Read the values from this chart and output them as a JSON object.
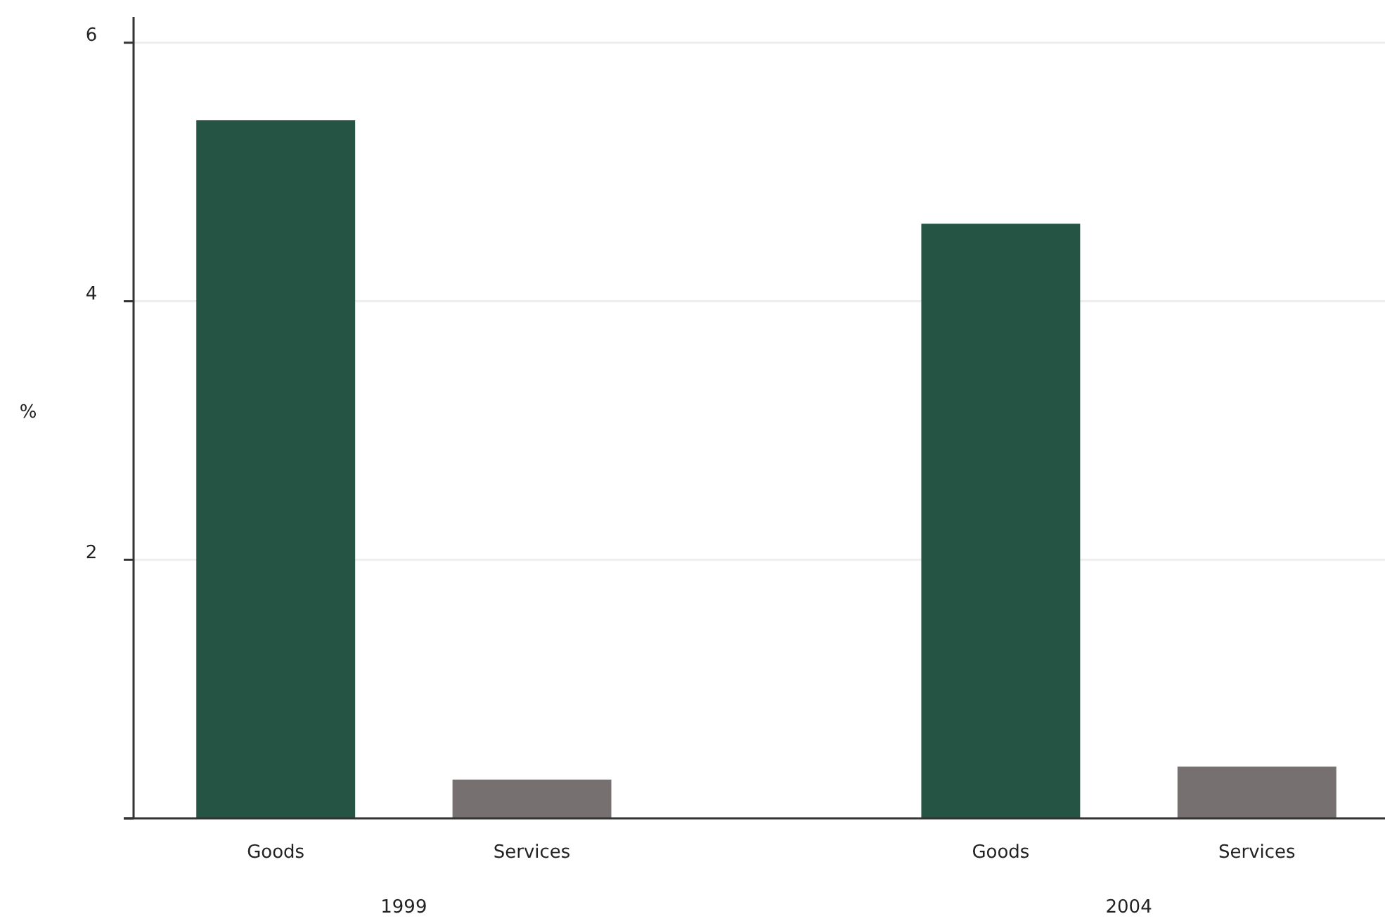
{
  "chart_data": {
    "type": "bar",
    "ylabel": "%",
    "categories": [
      "Goods",
      "Services",
      "Goods",
      "Services"
    ],
    "values": [
      5.4,
      0.3,
      4.6,
      0.4
    ],
    "colors": [
      "#255445",
      "#767170",
      "#255445",
      "#767170"
    ],
    "ylim": [
      0,
      6.2
    ],
    "yticks": [
      {
        "value": 0,
        "label": null
      },
      2,
      4,
      6
    ],
    "grid": "y",
    "annotations": [
      "1999",
      "2004"
    ]
  }
}
